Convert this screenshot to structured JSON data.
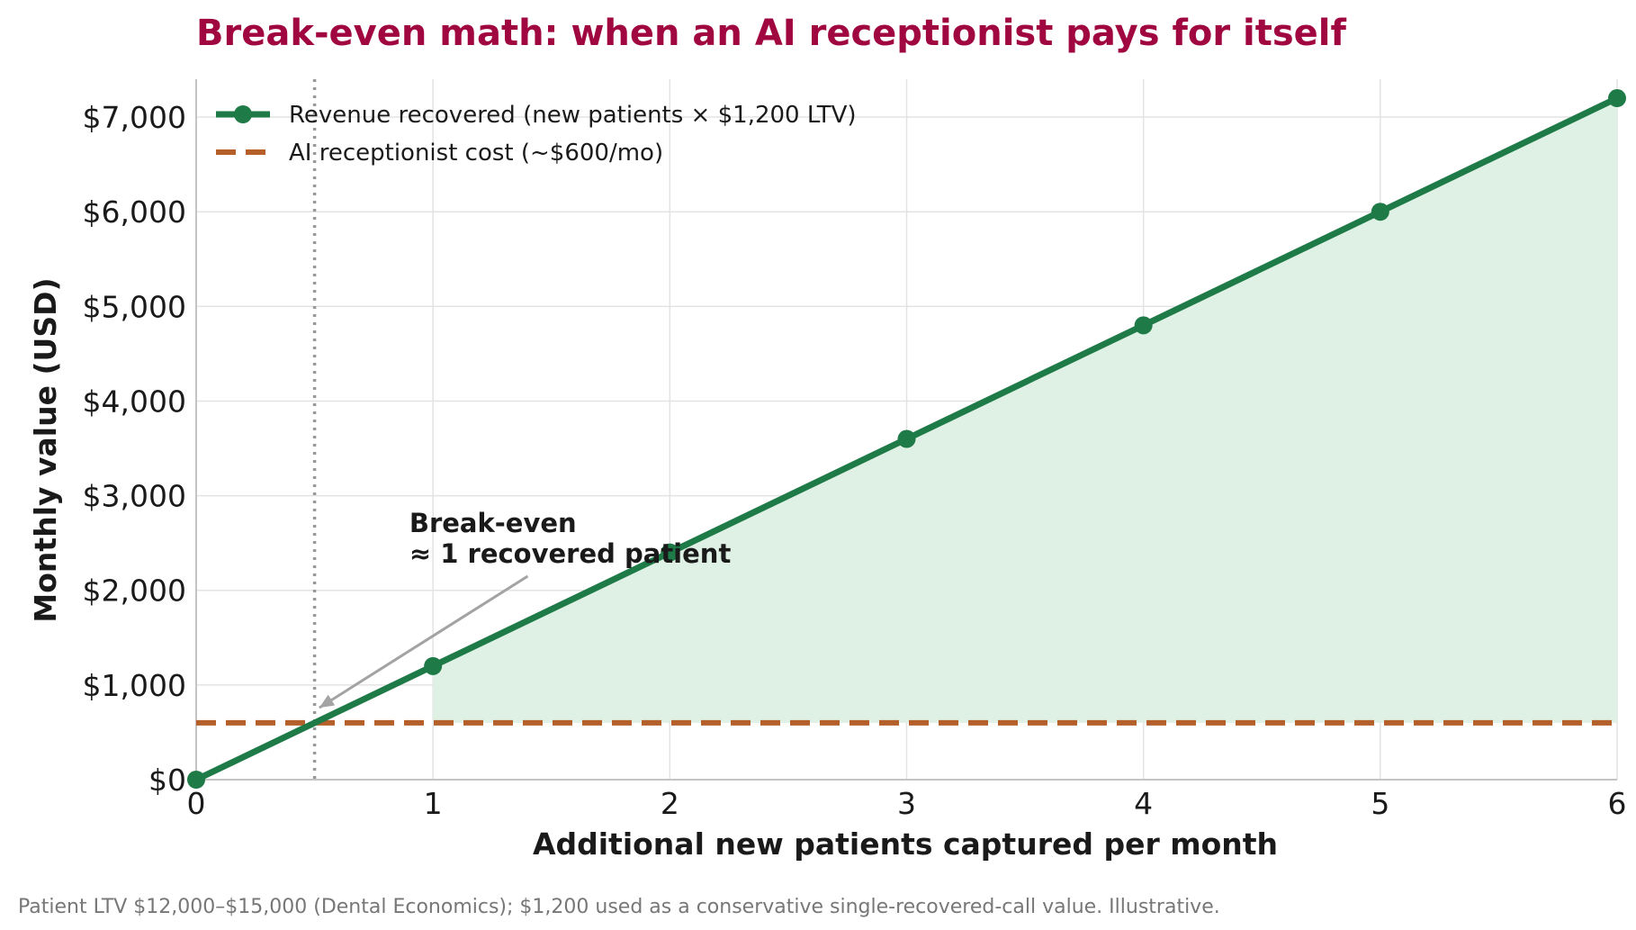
{
  "chart_data": {
    "type": "line",
    "title": "Break-even math: when an AI receptionist pays for itself",
    "xlabel": "Additional new patients captured per month",
    "ylabel": "Monthly value (USD)",
    "xlim": [
      0,
      6
    ],
    "ylim": [
      0,
      7400
    ],
    "x_ticks": [
      0,
      1,
      2,
      3,
      4,
      5,
      6
    ],
    "x_tick_labels": [
      "0",
      "1",
      "2",
      "3",
      "4",
      "5",
      "6"
    ],
    "y_ticks": [
      0,
      1000,
      2000,
      3000,
      4000,
      5000,
      6000,
      7000
    ],
    "y_tick_labels": [
      "$0",
      "$1,000",
      "$2,000",
      "$3,000",
      "$4,000",
      "$5,000",
      "$6,000",
      "$7,000"
    ],
    "grid": true,
    "legend_position": "top-left",
    "series": [
      {
        "name": "Revenue recovered (new patients × $1,200 LTV)",
        "style": "solid-line-with-markers",
        "color": "#1e7a46",
        "x": [
          0,
          1,
          2,
          3,
          4,
          5,
          6
        ],
        "y": [
          0,
          1200,
          2400,
          3600,
          4800,
          6000,
          7200
        ]
      },
      {
        "name": "AI receptionist cost (~$600/mo)",
        "style": "dashed-line",
        "color": "#b5602a",
        "x": [
          0,
          6
        ],
        "y": [
          600,
          600
        ]
      }
    ],
    "shaded_region": {
      "x_from": 1,
      "x_to": 6,
      "between": "revenue-and-cost",
      "color": "#dff0e4"
    },
    "break_even_x": 0.5,
    "annotation": {
      "lines": [
        "Break-even",
        "≈ 1 recovered patient"
      ],
      "text_at": [
        0.9,
        2400
      ],
      "arrow_tail": [
        1.4,
        2150
      ],
      "arrow_head": [
        0.52,
        760
      ]
    },
    "footnote": "Patient LTV $12,000–$15,000 (Dental Economics); $1,200 used as a conservative single-recovered-call value. Illustrative."
  }
}
